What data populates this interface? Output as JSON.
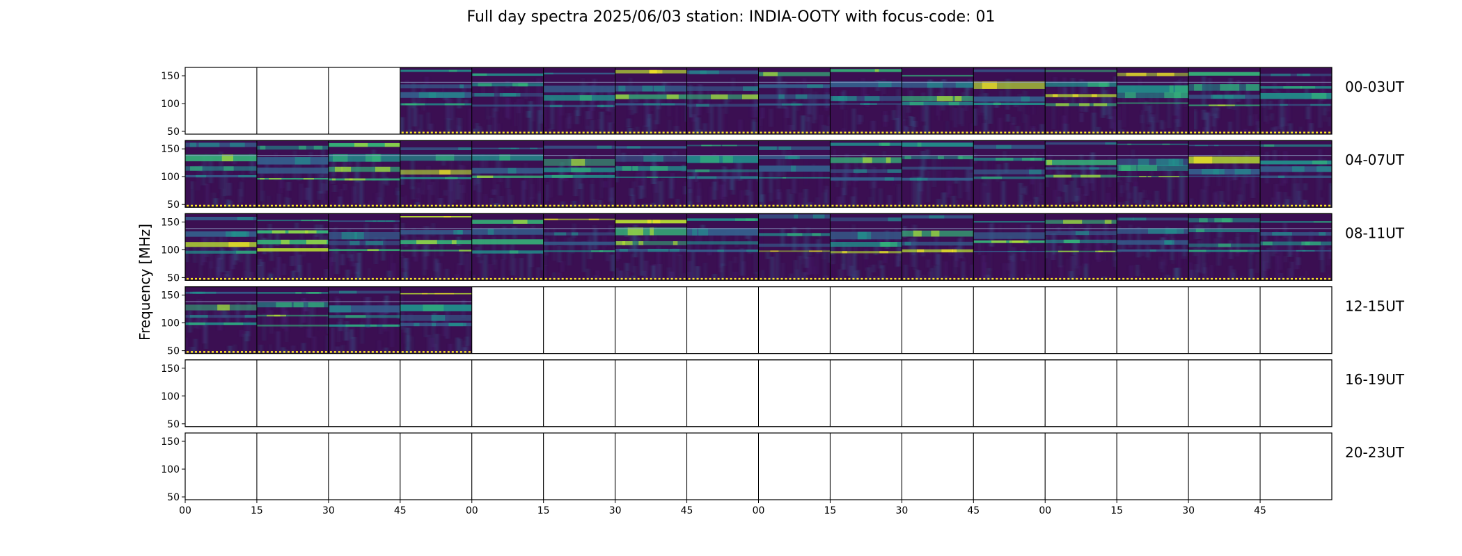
{
  "chart_data": {
    "type": "heatmap",
    "title": "Full day spectra 2025/06/03 station: INDIA-OOTY with focus-code: 01",
    "ylabel": "Frequency [MHz]",
    "xlabel": "",
    "yticks": [
      50,
      100,
      150
    ],
    "ylim": [
      45,
      165
    ],
    "xtick_labels": [
      "00",
      "15",
      "30",
      "45",
      "00",
      "15",
      "30",
      "45",
      "00",
      "15",
      "30",
      "45",
      "00",
      "15",
      "30",
      "45"
    ],
    "rows": [
      {
        "label": "00-03UT",
        "filled_panels": [
          3,
          4,
          5,
          6,
          7,
          8,
          9,
          10,
          11,
          12,
          13,
          14,
          15
        ]
      },
      {
        "label": "04-07UT",
        "filled_panels": [
          0,
          1,
          2,
          3,
          4,
          5,
          6,
          7,
          8,
          9,
          10,
          11,
          12,
          13,
          14,
          15
        ]
      },
      {
        "label": "08-11UT",
        "filled_panels": [
          0,
          1,
          2,
          3,
          4,
          5,
          6,
          7,
          8,
          9,
          10,
          11,
          12,
          13,
          14,
          15
        ]
      },
      {
        "label": "12-15UT",
        "filled_panels": [
          0,
          1,
          2,
          3
        ]
      },
      {
        "label": "16-19UT",
        "filled_panels": []
      },
      {
        "label": "20-23UT",
        "filled_panels": []
      }
    ],
    "panels_per_row": 16,
    "colormap": "viridis",
    "colors": {
      "background": "#3b0f52",
      "dark": "#440154",
      "mid": "#31688e",
      "teal": "#26a68a",
      "bright": "#bce531",
      "yellow": "#fde725"
    }
  }
}
